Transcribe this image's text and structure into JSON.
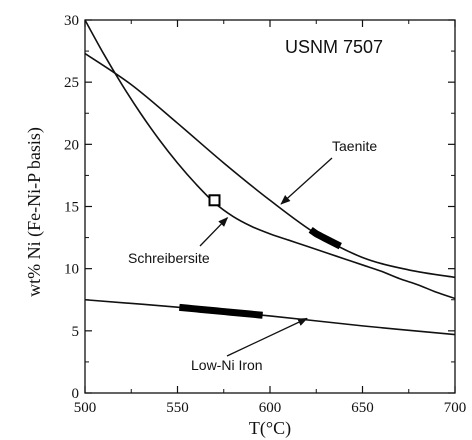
{
  "chart_data": {
    "type": "line",
    "title": "",
    "sample_label": "USNM 7507",
    "xlabel": "T(°C)",
    "ylabel": "wt% Ni (Fe-Ni-P basis)",
    "xlim": [
      500,
      700
    ],
    "ylim": [
      0,
      30
    ],
    "xticks": [
      500,
      550,
      600,
      650,
      700
    ],
    "yticks": [
      0,
      5,
      10,
      15,
      20,
      25,
      30
    ],
    "grid": false,
    "series": [
      {
        "name": "Taenite",
        "x": [
          500,
          525,
          550,
          575,
          600,
          625,
          650,
          675,
          700
        ],
        "y": [
          27.3,
          24.8,
          21.7,
          18.5,
          15.5,
          12.8,
          10.9,
          9.9,
          9.3
        ]
      },
      {
        "name": "Schreibersite",
        "x": [
          500,
          510,
          520,
          530,
          540,
          550,
          560,
          570,
          580,
          590,
          600,
          610,
          620,
          630,
          640,
          650,
          660,
          670,
          680,
          690,
          700
        ],
        "y": [
          30.0,
          27.3,
          24.8,
          22.5,
          20.4,
          18.5,
          16.8,
          15.3,
          14.2,
          13.4,
          12.8,
          12.3,
          11.8,
          11.3,
          10.8,
          10.3,
          9.8,
          9.2,
          8.7,
          8.1,
          7.6
        ]
      },
      {
        "name": "Low-Ni Iron",
        "x": [
          500,
          550,
          600,
          650,
          700
        ],
        "y": [
          7.5,
          6.9,
          6.2,
          5.4,
          4.7
        ]
      }
    ],
    "measured_segments": [
      {
        "series": "Taenite",
        "x_range": [
          622,
          638
        ]
      },
      {
        "series": "Low-Ni Iron",
        "x_range": [
          551,
          596
        ]
      }
    ],
    "markers": [
      {
        "shape": "open-square",
        "x": 570,
        "y": 15.5
      }
    ],
    "annotations": [
      {
        "text": "Taenite",
        "points_to": {
          "x": 606,
          "y": 15.2
        }
      },
      {
        "text": "Schreibersite",
        "points_to": {
          "x": 577,
          "y": 14.1
        }
      },
      {
        "text": "Low-Ni Iron",
        "points_to": {
          "x": 620,
          "y": 6.0
        }
      }
    ]
  }
}
